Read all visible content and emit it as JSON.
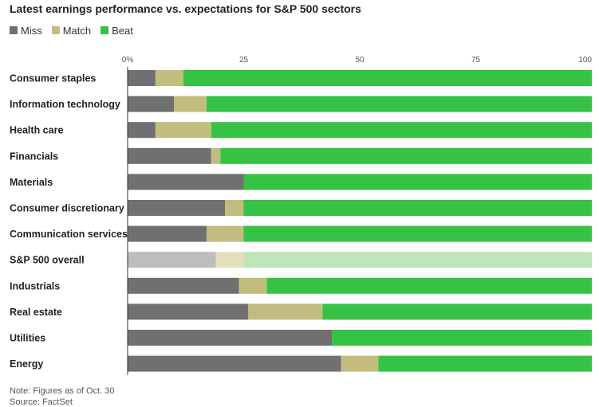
{
  "title": "Latest earnings performance vs. expectations for S&P 500 sectors",
  "legend": [
    {
      "label": "Miss",
      "color": "#707070"
    },
    {
      "label": "Match",
      "color": "#c2bc7f"
    },
    {
      "label": "Beat",
      "color": "#36c244"
    }
  ],
  "note": "Note: Figures as of Oct. 30",
  "source": "Source: FactSet",
  "chart_data": {
    "type": "bar",
    "orientation": "horizontal",
    "stacked": true,
    "x_ticks": [
      "0%",
      "25",
      "50",
      "75",
      "100"
    ],
    "x_tick_values": [
      0,
      25,
      50,
      75,
      100
    ],
    "xlim": [
      0,
      100
    ],
    "categories": [
      "Consumer staples",
      "Information technology",
      "Health care",
      "Financials",
      "Materials",
      "Consumer discretionary",
      "Communication services",
      "S&P 500 overall",
      "Industrials",
      "Real estate",
      "Utilities",
      "Energy"
    ],
    "series": [
      {
        "name": "Miss",
        "color": "#707070",
        "muted_color": "#bdbdbd",
        "values": [
          6,
          10,
          6,
          18,
          25,
          21,
          17,
          19,
          24,
          26,
          44,
          46
        ]
      },
      {
        "name": "Match",
        "color": "#c2bc7f",
        "muted_color": "#e3dfba",
        "values": [
          6,
          7,
          12,
          2,
          0,
          4,
          8,
          6,
          6,
          16,
          0,
          8
        ]
      },
      {
        "name": "Beat",
        "color": "#36c244",
        "muted_color": "#bfe6bb",
        "values": [
          88,
          83,
          82,
          80,
          75,
          75,
          75,
          75,
          70,
          58,
          56,
          46
        ]
      }
    ],
    "muted_category": "S&P 500 overall",
    "grid": false
  }
}
